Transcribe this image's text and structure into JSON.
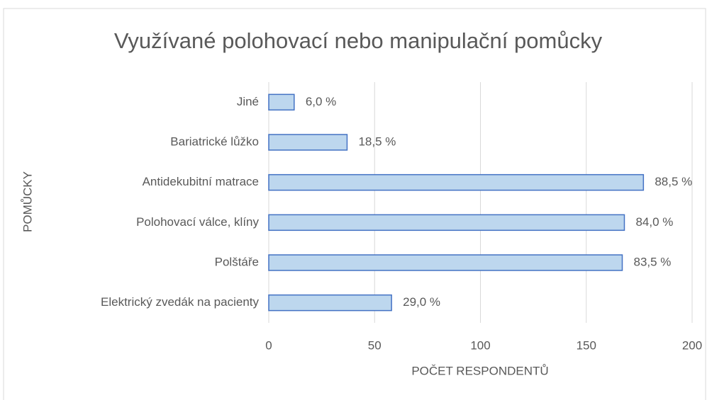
{
  "chart_data": {
    "type": "bar",
    "orientation": "horizontal",
    "title": "Využívané polohovací nebo manipulační pomůcky",
    "x_label": "POČET RESPONDENTŮ",
    "y_label": "POMŮCKY",
    "categories": [
      "Jiné",
      "Bariatrické lůžko",
      "Antidekubitní matrace",
      "Polohovací válce, klíny",
      "Polštáře",
      "Elektrický zvedák na pacienty"
    ],
    "values": [
      12,
      37,
      177,
      168,
      167,
      58
    ],
    "value_labels": [
      "6,0 %",
      "18,5 %",
      "88,5 %",
      "84,0 %",
      "83,5 %",
      "29,0 %"
    ],
    "color": "#bdd7ee",
    "edge_color": "#4472c4",
    "xlim": [
      0,
      200
    ],
    "xticks": [
      0,
      50,
      100,
      150,
      200
    ],
    "grid": true
  }
}
